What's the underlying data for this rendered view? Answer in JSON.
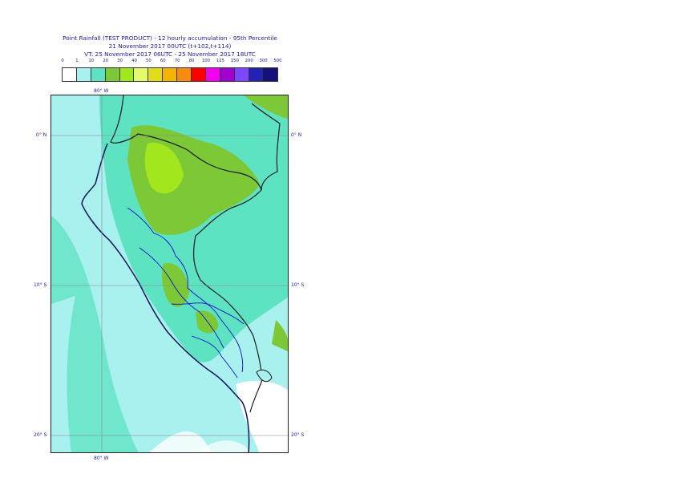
{
  "header": {
    "title_line1": "Point Rainfall (TEST PRODUCT) - 12 hourly accumulation - 95th Percentile",
    "title_line2": "21 November 2017 00UTC (t+102,t+114)",
    "title_line3": "VT: 25 November 2017 06UTC - 25 November 2017 18UTC"
  },
  "legend": {
    "thresholds": [
      "0",
      "1",
      "10",
      "20",
      "30",
      "40",
      "50",
      "60",
      "70",
      "80",
      "100",
      "125",
      "150",
      "200",
      "300",
      "500"
    ],
    "colors": [
      "#ffffff",
      "#a9f1ee",
      "#5de2c2",
      "#7cc837",
      "#a2e61d",
      "#e3fb6a",
      "#dfdc1a",
      "#f4b400",
      "#f98a0e",
      "#ff0000",
      "#f200f2",
      "#a100d0",
      "#7b47ff",
      "#2222b8",
      "#16107a"
    ]
  },
  "map": {
    "lon_labels_top": [
      "80° W"
    ],
    "lon_labels_bottom": [
      "80° W"
    ],
    "lat_labels_left": [
      "0° N",
      "10° S",
      "20° S"
    ],
    "lat_labels_right": [
      "0° N",
      "10° S",
      "20° S"
    ]
  }
}
